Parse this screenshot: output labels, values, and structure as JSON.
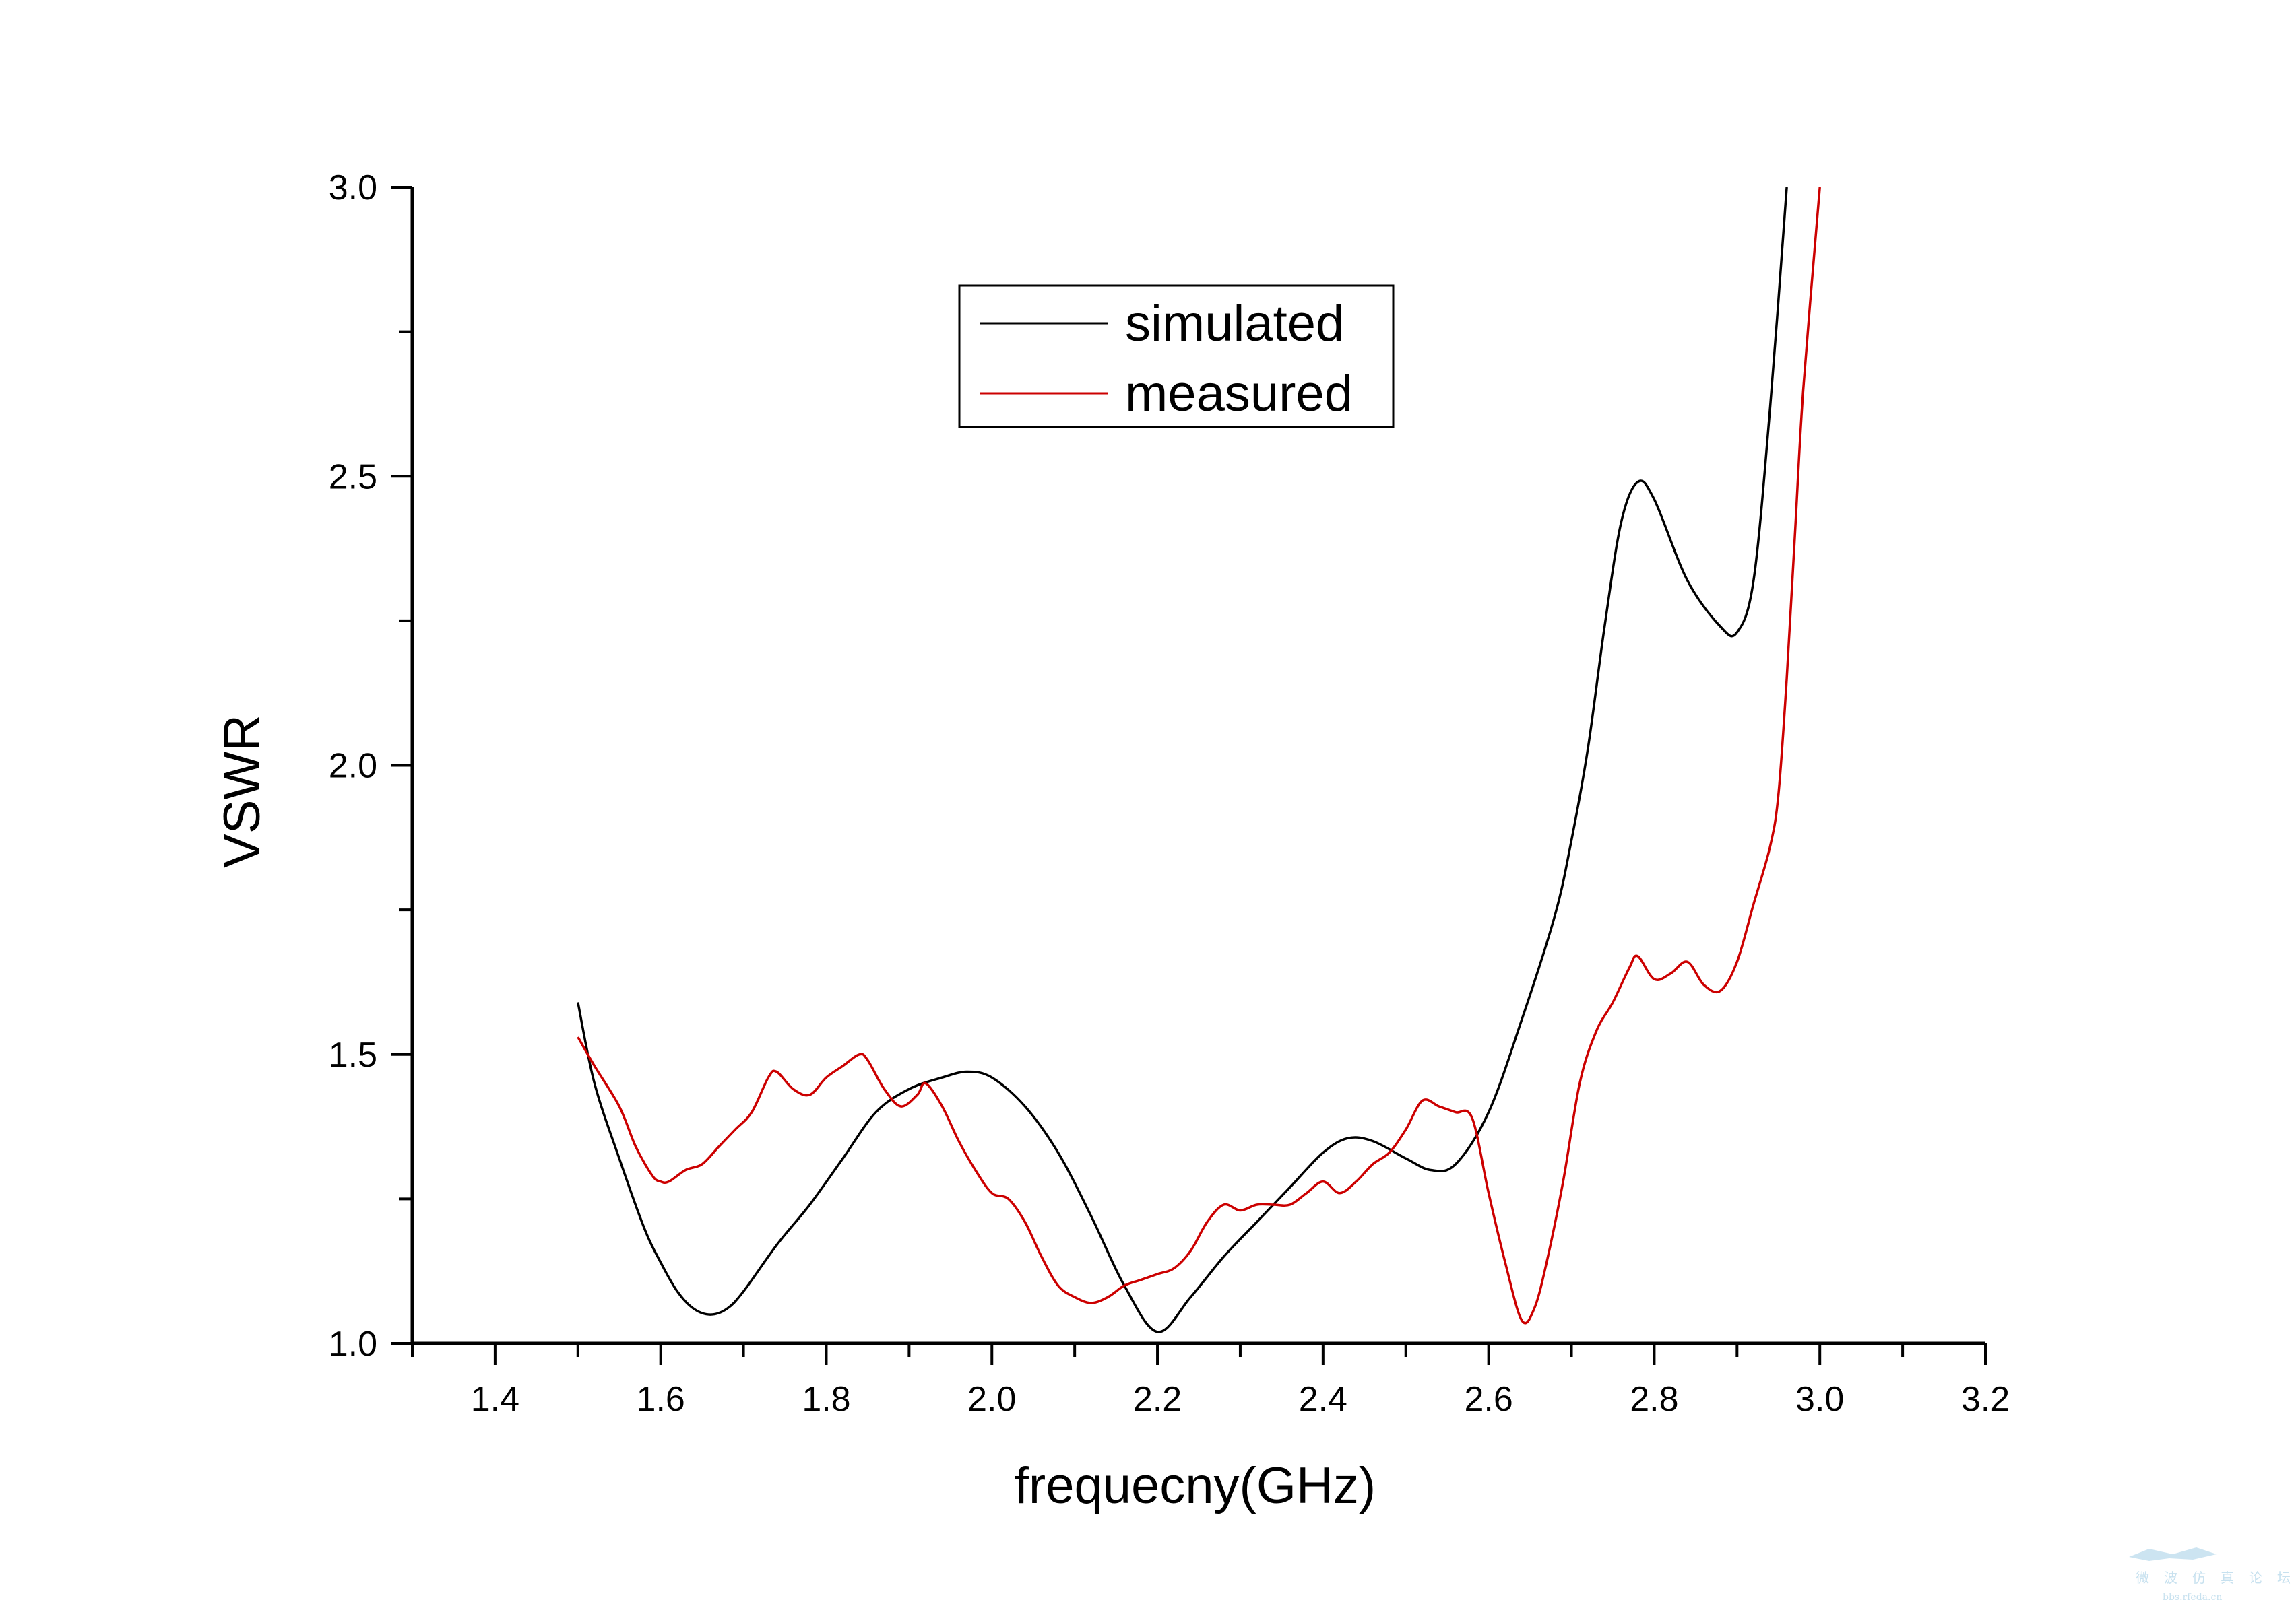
{
  "chart_data": {
    "type": "line",
    "xlabel": "frequecny(GHz)",
    "ylabel": "VSWR",
    "xlim": [
      1.3,
      3.2
    ],
    "ylim": [
      1.0,
      3.0
    ],
    "xticks": [
      "1.4",
      "1.6",
      "1.8",
      "2.0",
      "2.2",
      "2.4",
      "2.6",
      "2.8",
      "3.0",
      "3.2"
    ],
    "yticks": [
      "1.0",
      "1.5",
      "2.0",
      "2.5",
      "3.0"
    ],
    "grid": false,
    "legend_position": "top-center",
    "series": [
      {
        "name": "simulated",
        "color": "#000000",
        "x": [
          1.5,
          1.52,
          1.55,
          1.58,
          1.6,
          1.62,
          1.64,
          1.66,
          1.68,
          1.7,
          1.74,
          1.78,
          1.82,
          1.86,
          1.9,
          1.94,
          1.97,
          2.0,
          2.04,
          2.08,
          2.12,
          2.16,
          2.2,
          2.24,
          2.28,
          2.32,
          2.36,
          2.4,
          2.43,
          2.46,
          2.5,
          2.53,
          2.56,
          2.6,
          2.64,
          2.68,
          2.7,
          2.72,
          2.74,
          2.76,
          2.78,
          2.8,
          2.84,
          2.88,
          2.9,
          2.92,
          2.94,
          2.96
        ],
        "y": [
          1.59,
          1.45,
          1.32,
          1.2,
          1.14,
          1.09,
          1.06,
          1.05,
          1.06,
          1.09,
          1.17,
          1.24,
          1.32,
          1.4,
          1.44,
          1.46,
          1.47,
          1.46,
          1.41,
          1.33,
          1.22,
          1.1,
          1.02,
          1.08,
          1.15,
          1.21,
          1.27,
          1.33,
          1.355,
          1.35,
          1.32,
          1.3,
          1.31,
          1.4,
          1.56,
          1.74,
          1.87,
          2.03,
          2.24,
          2.42,
          2.49,
          2.46,
          2.32,
          2.24,
          2.23,
          2.32,
          2.62,
          3.0
        ]
      },
      {
        "name": "measured",
        "color": "#cc0000",
        "x": [
          1.5,
          1.52,
          1.55,
          1.57,
          1.59,
          1.6,
          1.61,
          1.63,
          1.65,
          1.67,
          1.69,
          1.71,
          1.73,
          1.74,
          1.76,
          1.78,
          1.8,
          1.82,
          1.84,
          1.85,
          1.87,
          1.89,
          1.91,
          1.92,
          1.94,
          1.96,
          1.98,
          2.0,
          2.02,
          2.04,
          2.06,
          2.08,
          2.1,
          2.12,
          2.14,
          2.16,
          2.18,
          2.2,
          2.22,
          2.24,
          2.26,
          2.28,
          2.3,
          2.32,
          2.34,
          2.36,
          2.38,
          2.4,
          2.42,
          2.44,
          2.46,
          2.48,
          2.5,
          2.52,
          2.54,
          2.56,
          2.58,
          2.6,
          2.62,
          2.64,
          2.655,
          2.67,
          2.69,
          2.71,
          2.73,
          2.75,
          2.77,
          2.78,
          2.8,
          2.82,
          2.84,
          2.86,
          2.88,
          2.9,
          2.92,
          2.94,
          2.95,
          2.96,
          2.97,
          2.98,
          3.0
        ],
        "y": [
          1.53,
          1.48,
          1.41,
          1.34,
          1.29,
          1.28,
          1.28,
          1.3,
          1.31,
          1.34,
          1.37,
          1.4,
          1.46,
          1.47,
          1.44,
          1.43,
          1.46,
          1.48,
          1.5,
          1.49,
          1.44,
          1.41,
          1.43,
          1.45,
          1.41,
          1.35,
          1.3,
          1.26,
          1.25,
          1.21,
          1.15,
          1.1,
          1.08,
          1.07,
          1.08,
          1.1,
          1.11,
          1.12,
          1.13,
          1.16,
          1.21,
          1.24,
          1.23,
          1.24,
          1.24,
          1.24,
          1.26,
          1.28,
          1.26,
          1.28,
          1.31,
          1.33,
          1.37,
          1.42,
          1.41,
          1.4,
          1.39,
          1.26,
          1.14,
          1.04,
          1.06,
          1.14,
          1.28,
          1.45,
          1.54,
          1.59,
          1.65,
          1.67,
          1.63,
          1.64,
          1.66,
          1.62,
          1.61,
          1.66,
          1.76,
          1.86,
          1.95,
          2.15,
          2.4,
          2.65,
          3.0
        ]
      }
    ]
  },
  "watermark": {
    "caption": "微波仿真论坛",
    "url": "bbs.rfeda.cn",
    "color": "#8fc3e0"
  }
}
